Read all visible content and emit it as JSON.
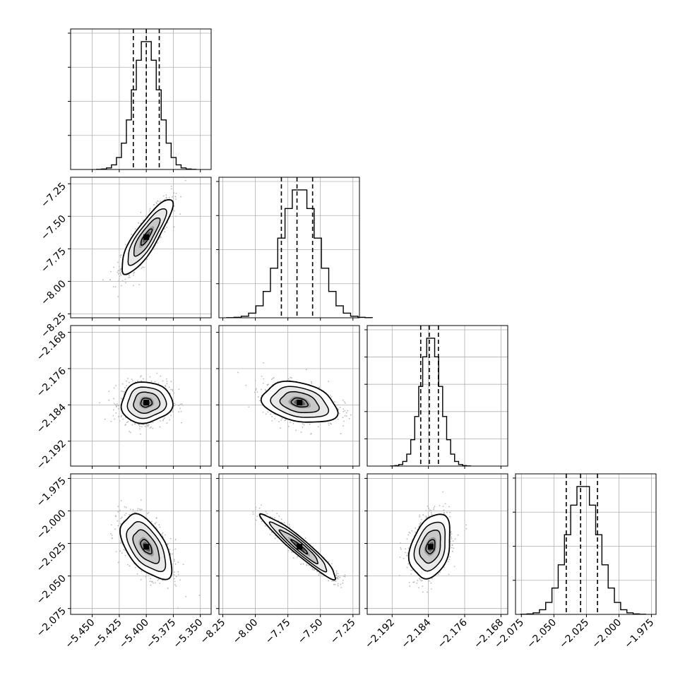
{
  "chart_data": {
    "type": "corner",
    "description": "",
    "grid": true,
    "parameters": [
      {
        "index": 0,
        "mean": -5.4,
        "q16": -5.412,
        "q50": -5.4,
        "q84": -5.388,
        "sd": 0.0115,
        "range": [
          -5.47,
          -5.34
        ],
        "ticks": [
          -5.45,
          -5.425,
          -5.4,
          -5.375,
          -5.35
        ],
        "tick_labels": [
          "−5.450",
          "−5.425",
          "−5.400",
          "−5.375",
          "−5.350"
        ],
        "hist_tick_count": 4
      },
      {
        "index": 1,
        "mean": -7.66,
        "q16": -7.8,
        "q50": -7.68,
        "q84": -7.56,
        "sd": 0.14,
        "range": [
          -8.28,
          -7.2
        ],
        "ticks": [
          -8.25,
          -8.0,
          -7.75,
          -7.5,
          -7.25
        ],
        "tick_labels": [
          "−8.25",
          "−8.00",
          "−7.75",
          "−7.50",
          "−7.25"
        ],
        "hist_tick_count": 4
      },
      {
        "index": 2,
        "mean": -2.1835,
        "q16": -2.1857,
        "q50": -2.1838,
        "q84": -2.1818,
        "sd": 0.0022,
        "range": [
          -2.1975,
          -2.1665
        ],
        "ticks": [
          -2.192,
          -2.184,
          -2.176,
          -2.168
        ],
        "tick_labels": [
          "−2.192",
          "−2.184",
          "−2.176",
          "−2.168"
        ],
        "hist_tick_count": 5
      },
      {
        "index": 3,
        "mean": -2.0275,
        "q16": -2.0405,
        "q50": -2.0295,
        "q84": -2.0165,
        "sd": 0.012,
        "range": [
          -2.0795,
          -1.9715
        ],
        "ticks": [
          -2.075,
          -2.05,
          -2.025,
          -2.0,
          -1.975
        ],
        "tick_labels": [
          "−2.075",
          "−2.050",
          "−2.025",
          "−2.000",
          "−1.975"
        ],
        "hist_tick_count": 4
      }
    ],
    "correlations": [
      {
        "x": 0,
        "y": 1,
        "rho": 0.85
      },
      {
        "x": 0,
        "y": 2,
        "rho": 0.05
      },
      {
        "x": 1,
        "y": 2,
        "rho": -0.3
      },
      {
        "x": 0,
        "y": 3,
        "rho": -0.55
      },
      {
        "x": 1,
        "y": 3,
        "rho": -0.95
      },
      {
        "x": 2,
        "y": 3,
        "rho": 0.3
      }
    ],
    "contour_levels_sigma": [
      0.5,
      1.0,
      1.5,
      2.0
    ]
  },
  "colors": {
    "histogram": "#000000",
    "contour": "#000000",
    "scatter": "#b8b8b8",
    "grid": "#b0b0b0"
  }
}
